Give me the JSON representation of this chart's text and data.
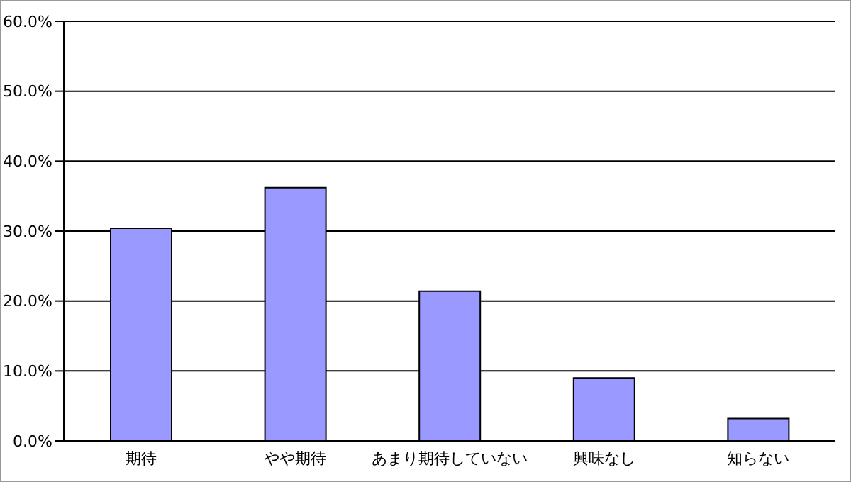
{
  "chart_data": {
    "type": "bar",
    "categories": [
      "期待",
      "やや期待",
      "あまり期待していない",
      "興味なし",
      "知らない"
    ],
    "values": [
      30.4,
      36.2,
      21.4,
      9.0,
      3.2
    ],
    "color": "#9999ff",
    "ylim": [
      0,
      60
    ],
    "yticks": [
      {
        "value": 0,
        "label": "0.0%"
      },
      {
        "value": 10,
        "label": "10.0%"
      },
      {
        "value": 20,
        "label": "20.0%"
      },
      {
        "value": 30,
        "label": "30.0%"
      },
      {
        "value": 40,
        "label": "40.0%"
      },
      {
        "value": 50,
        "label": "50.0%"
      },
      {
        "value": 60,
        "label": "60.0%"
      }
    ],
    "grid": "y"
  }
}
